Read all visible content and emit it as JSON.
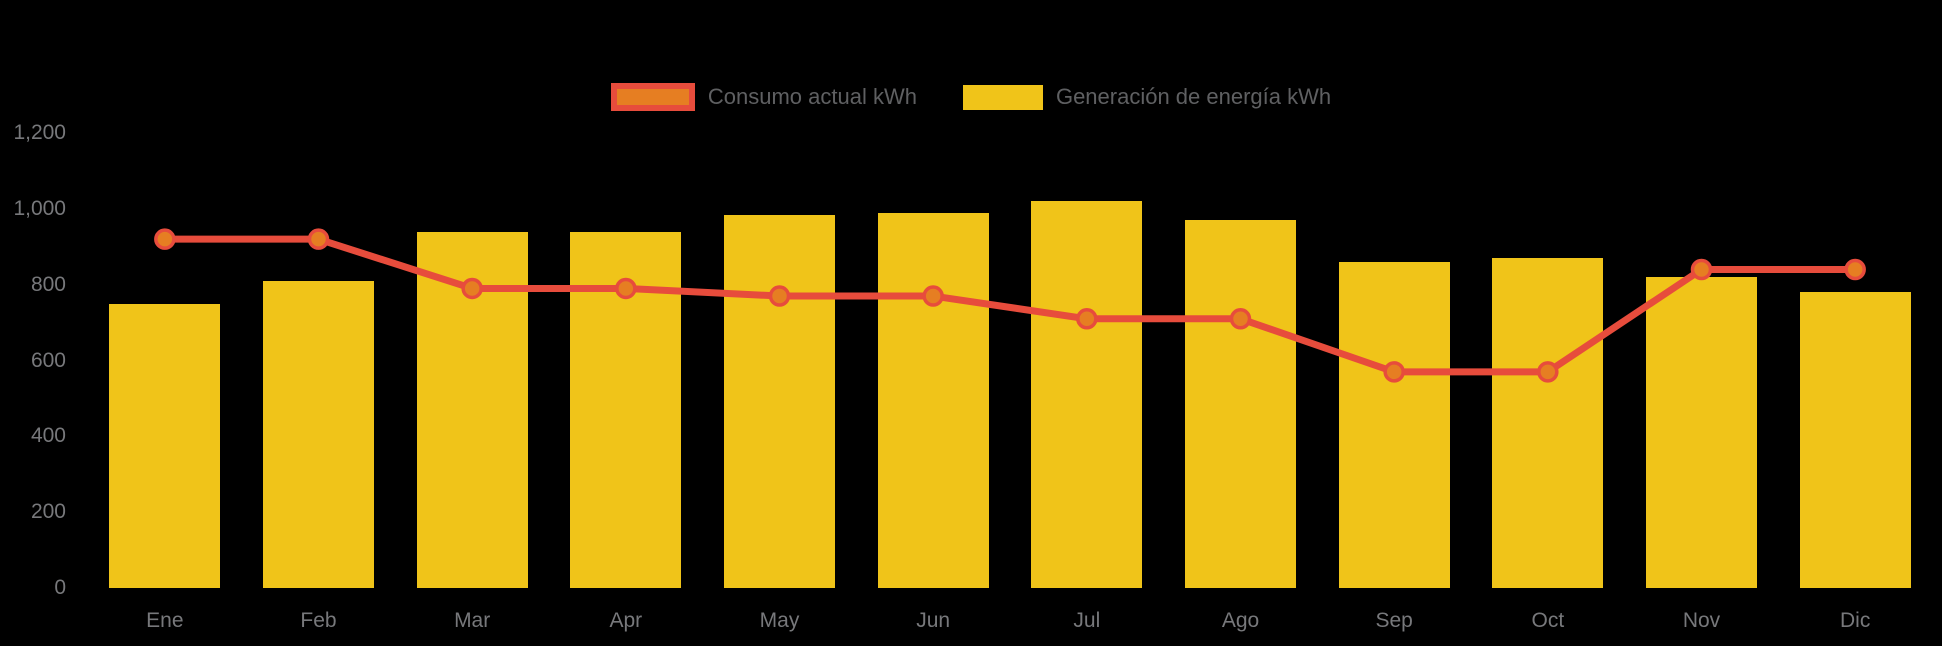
{
  "legend": {
    "items": [
      {
        "label": "Consumo actual kWh"
      },
      {
        "label": "Generación de energía kWh"
      }
    ]
  },
  "chart_data": {
    "type": "bar",
    "title": "",
    "xlabel": "",
    "ylabel": "",
    "categories": [
      "Ene",
      "Feb",
      "Mar",
      "Apr",
      "May",
      "Jun",
      "Jul",
      "Ago",
      "Sep",
      "Oct",
      "Nov",
      "Dic"
    ],
    "series": [
      {
        "name": "Consumo actual kWh",
        "type": "line",
        "color": "#e74c3c",
        "marker_fill": "#e67e22",
        "values": [
          920,
          920,
          790,
          790,
          770,
          770,
          710,
          710,
          570,
          570,
          840,
          840
        ]
      },
      {
        "name": "Generación de energía kWh",
        "type": "bar",
        "color": "#f0c419",
        "values": [
          750,
          810,
          940,
          940,
          985,
          990,
          1020,
          970,
          860,
          870,
          820,
          780
        ]
      }
    ],
    "ylim": [
      0,
      1200
    ],
    "yticks": [
      {
        "label": "0",
        "value": 0
      },
      {
        "label": "200",
        "value": 200
      },
      {
        "label": "400",
        "value": 400
      },
      {
        "label": "600",
        "value": 600
      },
      {
        "label": "800",
        "value": 800
      },
      {
        "label": "1,000",
        "value": 1000
      },
      {
        "label": "1,200",
        "value": 1200
      }
    ],
    "grid": false,
    "legend_position": "top",
    "background": "#000000",
    "axis_text_color": "#77787b",
    "legend_text_color": "#5f6062"
  }
}
